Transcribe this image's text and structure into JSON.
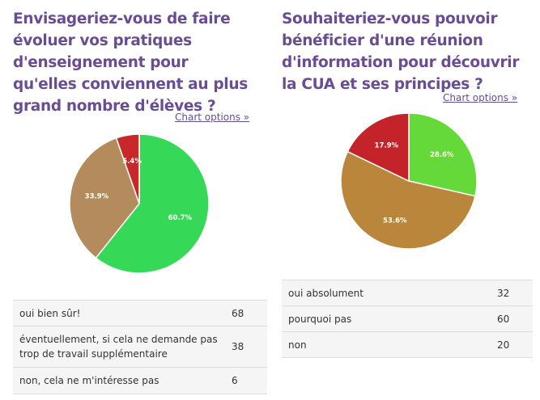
{
  "chart_data": [
    {
      "type": "pie",
      "title": "Envisageriez-vous de faire évoluer vos pratiques d'enseignement pour qu'elles conviennent au plus grand nombre d'élèves ?",
      "options_link": "Chart options »",
      "categories": [
        "oui bien sûr!",
        "éventuellement, si cela ne demande pas trop de travail supplémentaire",
        "non, cela ne m'intéresse pas"
      ],
      "values": [
        68,
        38,
        6
      ],
      "slice_labels": [
        "60.7%",
        "33.9%",
        "5.4%"
      ],
      "colors": [
        "#35d957",
        "#b38b5d",
        "#c9282a"
      ]
    },
    {
      "type": "pie",
      "title": "Souhaiteriez-vous pouvoir bénéficier d'une réunion d'information pour découvrir la CUA et ses principes ?",
      "options_link": "Chart options »",
      "categories": [
        "oui absolument",
        "pourquoi pas",
        "non"
      ],
      "values": [
        32,
        60,
        20
      ],
      "slice_labels": [
        "28.6%",
        "53.6%",
        "17.9%"
      ],
      "colors": [
        "#66d93a",
        "#b9863c",
        "#c5232a"
      ]
    }
  ]
}
